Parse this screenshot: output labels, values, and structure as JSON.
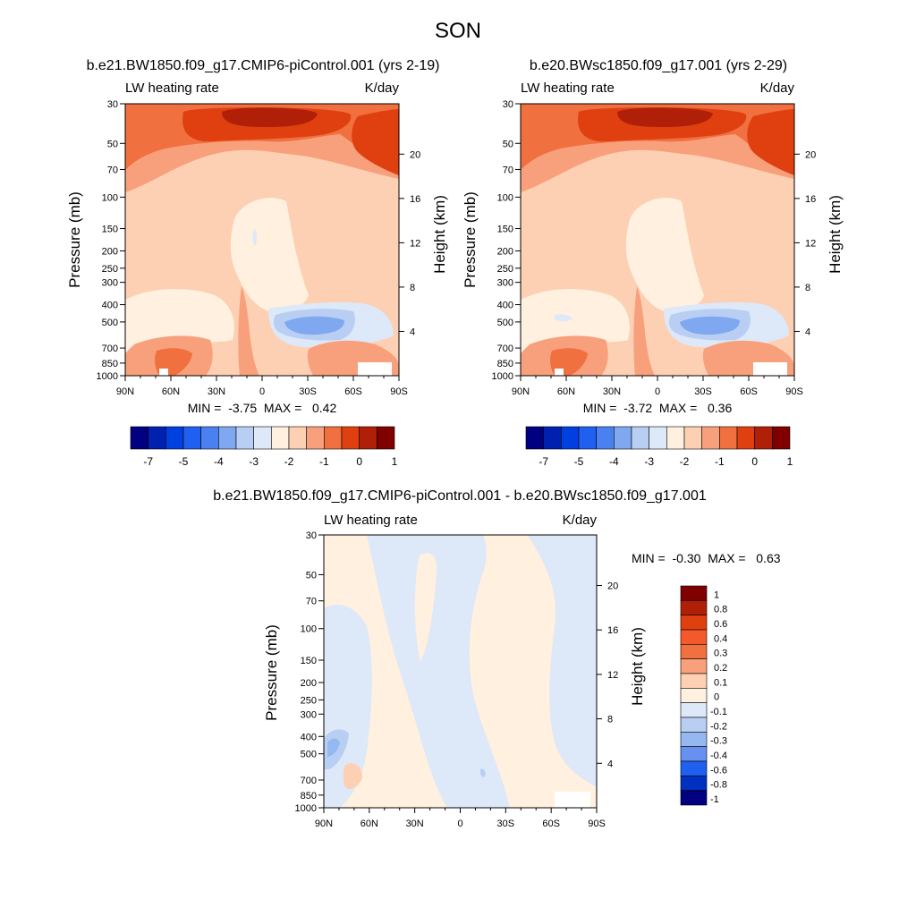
{
  "figure_title": "SON",
  "chart_data": [
    {
      "type": "heatmap",
      "title": "b.e21.BW1850.f09_g17.CMIP6-piControl.001 (yrs 2-19)",
      "left_label": "LW heating rate",
      "right_label": "K/day",
      "ylabel": "Pressure (mb)",
      "ylabel_right": "Height (km)",
      "x_ticks": [
        "90N",
        "60N",
        "30N",
        "0",
        "30S",
        "60S",
        "90S"
      ],
      "y_ticks": [
        30,
        50,
        70,
        100,
        150,
        200,
        250,
        300,
        400,
        500,
        700,
        850,
        1000
      ],
      "height_ticks": [
        4,
        8,
        12,
        16,
        20
      ],
      "xlim": [
        90,
        -90
      ],
      "ylim": [
        1000,
        30
      ],
      "y_scale": "log",
      "stats": "MIN =  -3.75  MAX =   0.42",
      "min": -3.75,
      "max": 0.42,
      "colorbar_labels": [
        "-7",
        "-5",
        "-4",
        "-3",
        "-2",
        "-1",
        "0",
        "1"
      ]
    },
    {
      "type": "heatmap",
      "title": "b.e20.BWsc1850.f09_g17.001 (yrs 2-29)",
      "left_label": "LW heating rate",
      "right_label": "K/day",
      "ylabel": "Pressure (mb)",
      "ylabel_right": "Height (km)",
      "x_ticks": [
        "90N",
        "60N",
        "30N",
        "0",
        "30S",
        "60S",
        "90S"
      ],
      "y_ticks": [
        30,
        50,
        70,
        100,
        150,
        200,
        250,
        300,
        400,
        500,
        700,
        850,
        1000
      ],
      "height_ticks": [
        4,
        8,
        12,
        16,
        20
      ],
      "xlim": [
        90,
        -90
      ],
      "ylim": [
        1000,
        30
      ],
      "y_scale": "log",
      "stats": "MIN =  -3.72  MAX =   0.36",
      "min": -3.72,
      "max": 0.36,
      "colorbar_labels": [
        "-7",
        "-5",
        "-4",
        "-3",
        "-2",
        "-1",
        "0",
        "1"
      ]
    },
    {
      "type": "heatmap",
      "title": "b.e21.BW1850.f09_g17.CMIP6-piControl.001 - b.e20.BWsc1850.f09_g17.001",
      "left_label": "LW heating rate",
      "right_label": "K/day",
      "ylabel": "Pressure (mb)",
      "ylabel_right": "Height (km)",
      "x_ticks": [
        "90N",
        "60N",
        "30N",
        "0",
        "30S",
        "60S",
        "90S"
      ],
      "y_ticks": [
        30,
        50,
        70,
        100,
        150,
        200,
        250,
        300,
        400,
        500,
        700,
        850,
        1000
      ],
      "height_ticks": [
        4,
        8,
        12,
        16,
        20
      ],
      "xlim": [
        90,
        -90
      ],
      "ylim": [
        1000,
        30
      ],
      "y_scale": "log",
      "stats": "MIN =  -0.30  MAX =   0.63",
      "min": -0.3,
      "max": 0.63,
      "colorbar_labels": [
        "1",
        "0.8",
        "0.6",
        "0.4",
        "0.3",
        "0.2",
        "0.1",
        "0",
        "-0.1",
        "-0.2",
        "-0.3",
        "-0.4",
        "-0.6",
        "-0.8",
        "-1"
      ]
    }
  ],
  "palette": [
    "#000080",
    "#0020b0",
    "#0040e0",
    "#2060f0",
    "#4a80f0",
    "#80a8f0",
    "#b8cef2",
    "#dde8f8",
    "#fff0e0",
    "#fdd0b4",
    "#f8a07c",
    "#f07040",
    "#e04010",
    "#b02008",
    "#800000"
  ],
  "diff_palette": [
    "#800000",
    "#b02008",
    "#e04010",
    "#f5582a",
    "#f07040",
    "#f8a07c",
    "#fdd0b4",
    "#fff0e0",
    "#dde8f8",
    "#b8cef2",
    "#96b8f0",
    "#6890f0",
    "#2060f0",
    "#0030c0",
    "#000080"
  ]
}
